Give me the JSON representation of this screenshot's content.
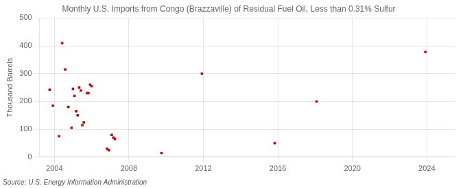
{
  "chart_data": {
    "type": "scatter",
    "title": "Monthly U.S. Imports from Congo (Brazzaville) of Residual Fuel Oil, Less than 0.31% Sulfur",
    "ylabel": "Thousand Barrels",
    "annotations": [
      "Source: U.S. Energy Information Administration"
    ],
    "x": [
      2003.75,
      2003.92,
      2004.25,
      2004.42,
      2004.58,
      2004.75,
      2004.92,
      2005.0,
      2005.08,
      2005.17,
      2005.25,
      2005.33,
      2005.42,
      2005.5,
      2005.58,
      2005.75,
      2005.83,
      2005.92,
      2006.0,
      2006.83,
      2006.92,
      2007.08,
      2007.17,
      2007.25,
      2009.75,
      2011.92,
      2015.83,
      2018.08,
      2023.92
    ],
    "values": [
      242,
      185,
      75,
      410,
      315,
      180,
      105,
      245,
      220,
      165,
      150,
      250,
      240,
      115,
      125,
      230,
      230,
      260,
      255,
      30,
      25,
      80,
      70,
      65,
      15,
      300,
      50,
      200,
      378
    ],
    "color": "#cc0000",
    "marker": "square",
    "xlim": [
      2003.2,
      2025.5
    ],
    "xticks": [
      2004,
      2008,
      2012,
      2016,
      2020,
      2024
    ],
    "ylim": [
      0,
      500
    ],
    "yticks": [
      0,
      100,
      200,
      300,
      400,
      500
    ],
    "grid": true
  }
}
